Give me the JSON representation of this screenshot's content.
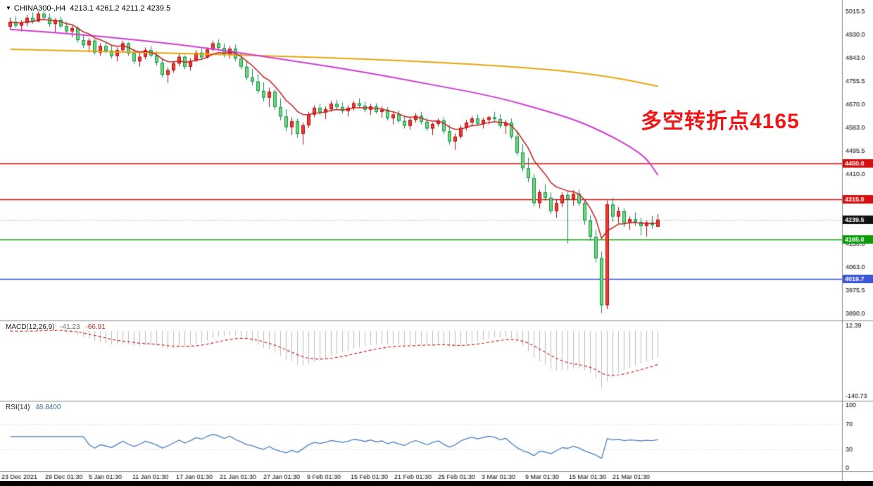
{
  "header": {
    "dropdown_icon": "▼",
    "symbol_timeframe": "CHINA300-,H4",
    "ohlc": "4213.1 4261.2 4211.2 4239.5"
  },
  "annotation": {
    "text": "多空转折点4165",
    "color": "#f21515"
  },
  "macd_pane": {
    "name": "MACD(12,26,9)",
    "main_value": "-41.23",
    "signal_value": "-66.91",
    "axis_labels": [
      {
        "text": "12.39",
        "v": 12.39
      },
      {
        "text": "-140.73",
        "v": -140.73
      }
    ]
  },
  "rsi_pane": {
    "name": "RSI(14)",
    "value": "48.8400",
    "levels": [
      70,
      30
    ],
    "axis_labels": [
      {
        "text": "100",
        "v": 100
      },
      {
        "text": "70",
        "v": 70
      },
      {
        "text": "30",
        "v": 30
      },
      {
        "text": "0",
        "v": 0
      }
    ]
  },
  "chart_data": {
    "type": "candlestick",
    "symbol": "CHINA300-",
    "timeframe": "H4",
    "current": {
      "open": 4213.1,
      "high": 4261.2,
      "low": 4211.2,
      "close": 4239.5
    },
    "price_axis": {
      "ticks": [
        "5015.5",
        "4930.0",
        "4843.0",
        "4755.5",
        "4670.0",
        "4583.0",
        "4495.5",
        "4410.0",
        "4150.0",
        "4063.0",
        "3975.5",
        "3890.0"
      ],
      "y_top_price": 5036.5,
      "y_bottom_price": 3864
    },
    "hlines": [
      {
        "price": 4450.0,
        "label": "4450.0",
        "color": "#d40f0f"
      },
      {
        "price": 4315.0,
        "label": "4315.0",
        "color": "#d40f0f"
      },
      {
        "price": 4165.0,
        "label": "4165.0",
        "color": "#0b9b0b"
      },
      {
        "price": 4019.7,
        "label": "4019.7",
        "color": "#3a56d4"
      }
    ],
    "current_price": {
      "value": 4239.5,
      "label": "4239.5",
      "badge_color": "#111111",
      "line_color": "#aaaaaa"
    },
    "time_labels": [
      "23 Dec 2021",
      "29 Dec 01:30",
      "5 Jan 01:30",
      "11 Jan 01:30",
      "17 Jan 01:30",
      "21 Jan 01:30",
      "27 Jan 01:30",
      "9 Feb 01:30",
      "15 Feb 01:30",
      "21 Feb 01:30",
      "25 Feb 01:30",
      "3 Mar 01:30",
      "9 Mar 01:30",
      "15 Mar 01:30",
      "21 Mar 01:30"
    ],
    "periods": {
      "macd": [
        12,
        26,
        9
      ],
      "rsi": 14
    },
    "colors": {
      "up_fill": "#f03b2e",
      "up_stroke": "#b01010",
      "down_fill": "#74d874",
      "down_stroke": "#0e8f56",
      "macd_hist": "#bdbdbd",
      "macd_signal": "#c62828",
      "rsi_line": "#4a7ebb"
    },
    "overlays": [
      {
        "name": "ma-orange-slow",
        "color": "#e7a615",
        "width": 2,
        "points": [
          [
            0,
            4874
          ],
          [
            15,
            4867
          ],
          [
            30,
            4859
          ],
          [
            45,
            4850
          ],
          [
            60,
            4840
          ],
          [
            75,
            4827
          ],
          [
            90,
            4808
          ],
          [
            100,
            4790
          ],
          [
            108,
            4766
          ],
          [
            115,
            4736
          ]
        ]
      },
      {
        "name": "ma-magenta-mid",
        "color": "#cf3fcf",
        "width": 2,
        "points": [
          [
            0,
            4948
          ],
          [
            12,
            4930
          ],
          [
            24,
            4906
          ],
          [
            36,
            4876
          ],
          [
            48,
            4838
          ],
          [
            61,
            4796
          ],
          [
            73,
            4750
          ],
          [
            86,
            4698
          ],
          [
            95,
            4646
          ],
          [
            101,
            4606
          ],
          [
            106,
            4558
          ],
          [
            110,
            4512
          ],
          [
            113,
            4468
          ],
          [
            115,
            4405
          ]
        ]
      },
      {
        "name": "ma-red-fast",
        "color": "#c32222",
        "width": 1.5,
        "type": "ema",
        "period": 8
      }
    ],
    "candles": [
      [
        4958,
        4992,
        4946,
        4976
      ],
      [
        4976,
        4996,
        4954,
        4962
      ],
      [
        4962,
        4982,
        4940,
        4972
      ],
      [
        4972,
        5002,
        4960,
        4991
      ],
      [
        4991,
        5011,
        4969,
        4978
      ],
      [
        4978,
        5015,
        4974,
        5006
      ],
      [
        5006,
        5014,
        4984,
        4992
      ],
      [
        4992,
        5008,
        4958,
        4968
      ],
      [
        4968,
        4990,
        4938,
        4984
      ],
      [
        4984,
        4996,
        4952,
        4960
      ],
      [
        4960,
        4976,
        4930,
        4941
      ],
      [
        4941,
        4962,
        4919,
        4953
      ],
      [
        4953,
        4959,
        4899,
        4908
      ],
      [
        4908,
        4931,
        4879,
        4889
      ],
      [
        4889,
        4916,
        4864,
        4906
      ],
      [
        4906,
        4911,
        4854,
        4862
      ],
      [
        4862,
        4896,
        4849,
        4886
      ],
      [
        4886,
        4901,
        4859,
        4869
      ],
      [
        4869,
        4890,
        4839,
        4849
      ],
      [
        4849,
        4881,
        4829,
        4871
      ],
      [
        4871,
        4906,
        4861,
        4896
      ],
      [
        4896,
        4901,
        4849,
        4859
      ],
      [
        4859,
        4876,
        4819,
        4829
      ],
      [
        4829,
        4861,
        4809,
        4846
      ],
      [
        4846,
        4881,
        4836,
        4871
      ],
      [
        4871,
        4886,
        4844,
        4851
      ],
      [
        4851,
        4866,
        4814,
        4824
      ],
      [
        4824,
        4841,
        4769,
        4779
      ],
      [
        4779,
        4806,
        4749,
        4796
      ],
      [
        4796,
        4831,
        4786,
        4821
      ],
      [
        4821,
        4856,
        4811,
        4846
      ],
      [
        4846,
        4851,
        4799,
        4809
      ],
      [
        4809,
        4841,
        4794,
        4831
      ],
      [
        4831,
        4871,
        4826,
        4861
      ],
      [
        4861,
        4876,
        4834,
        4844
      ],
      [
        4844,
        4881,
        4839,
        4873
      ],
      [
        4873,
        4906,
        4866,
        4896
      ],
      [
        4896,
        4911,
        4869,
        4879
      ],
      [
        4879,
        4896,
        4844,
        4854
      ],
      [
        4854,
        4886,
        4839,
        4876
      ],
      [
        4876,
        4891,
        4829,
        4839
      ],
      [
        4839,
        4861,
        4799,
        4809
      ],
      [
        4809,
        4831,
        4759,
        4769
      ],
      [
        4769,
        4801,
        4739,
        4754
      ],
      [
        4754,
        4781,
        4709,
        4719
      ],
      [
        4719,
        4751,
        4679,
        4694
      ],
      [
        4694,
        4731,
        4659,
        4716
      ],
      [
        4716,
        4726,
        4649,
        4659
      ],
      [
        4659,
        4691,
        4609,
        4624
      ],
      [
        4624,
        4651,
        4569,
        4584
      ],
      [
        4584,
        4621,
        4554,
        4606
      ],
      [
        4606,
        4616,
        4544,
        4559
      ],
      [
        4559,
        4601,
        4519,
        4591
      ],
      [
        4591,
        4641,
        4581,
        4631
      ],
      [
        4631,
        4666,
        4621,
        4656
      ],
      [
        4656,
        4671,
        4629,
        4639
      ],
      [
        4639,
        4661,
        4614,
        4651
      ],
      [
        4651,
        4681,
        4641,
        4671
      ],
      [
        4671,
        4686,
        4649,
        4659
      ],
      [
        4659,
        4676,
        4634,
        4644
      ],
      [
        4644,
        4666,
        4624,
        4656
      ],
      [
        4656,
        4681,
        4646,
        4673
      ],
      [
        4673,
        4691,
        4654,
        4664
      ],
      [
        4664,
        4679,
        4639,
        4649
      ],
      [
        4649,
        4671,
        4629,
        4661
      ],
      [
        4661,
        4673,
        4634,
        4641
      ],
      [
        4641,
        4661,
        4619,
        4649
      ],
      [
        4649,
        4659,
        4609,
        4617
      ],
      [
        4617,
        4641,
        4594,
        4631
      ],
      [
        4631,
        4646,
        4599,
        4607
      ],
      [
        4607,
        4626,
        4579,
        4589
      ],
      [
        4589,
        4621,
        4574,
        4611
      ],
      [
        4611,
        4636,
        4601,
        4626
      ],
      [
        4626,
        4641,
        4594,
        4604
      ],
      [
        4604,
        4619,
        4569,
        4579
      ],
      [
        4579,
        4601,
        4554,
        4596
      ],
      [
        4596,
        4616,
        4586,
        4609
      ],
      [
        4609,
        4621,
        4559,
        4569
      ],
      [
        4569,
        4591,
        4519,
        4531
      ],
      [
        4531,
        4561,
        4499,
        4549
      ],
      [
        4549,
        4591,
        4541,
        4581
      ],
      [
        4581,
        4611,
        4571,
        4601
      ],
      [
        4601,
        4626,
        4586,
        4616
      ],
      [
        4616,
        4631,
        4589,
        4597
      ],
      [
        4597,
        4619,
        4579,
        4611
      ],
      [
        4611,
        4626,
        4594,
        4621
      ],
      [
        4621,
        4641,
        4601,
        4614
      ],
      [
        4614,
        4631,
        4579,
        4589
      ],
      [
        4589,
        4611,
        4559,
        4601
      ],
      [
        4601,
        4616,
        4539,
        4549
      ],
      [
        4549,
        4571,
        4479,
        4489
      ],
      [
        4489,
        4521,
        4419,
        4431
      ],
      [
        4431,
        4471,
        4379,
        4394
      ],
      [
        4394,
        4409,
        4289,
        4301
      ],
      [
        4301,
        4351,
        4281,
        4341
      ],
      [
        4341,
        4371,
        4311,
        4321
      ],
      [
        4321,
        4341,
        4261,
        4271
      ],
      [
        4271,
        4316,
        4246,
        4301
      ],
      [
        4301,
        4341,
        4286,
        4331
      ],
      [
        4331,
        4341,
        4151,
        4316
      ],
      [
        4316,
        4349,
        4291,
        4336
      ],
      [
        4336,
        4351,
        4291,
        4301
      ],
      [
        4301,
        4316,
        4221,
        4236
      ],
      [
        4236,
        4256,
        4161,
        4176
      ],
      [
        4176,
        4201,
        4081,
        4096
      ],
      [
        4096,
        4121,
        3891,
        3921
      ],
      [
        3921,
        4311,
        3906,
        4296
      ],
      [
        4296,
        4321,
        4231,
        4251
      ],
      [
        4251,
        4286,
        4226,
        4271
      ],
      [
        4271,
        4281,
        4211,
        4226
      ],
      [
        4226,
        4251,
        4201,
        4241
      ],
      [
        4241,
        4266,
        4216,
        4231
      ],
      [
        4231,
        4246,
        4181,
        4216
      ],
      [
        4216,
        4236,
        4176,
        4229
      ],
      [
        4229,
        4253,
        4206,
        4219
      ],
      [
        4213.1,
        4261.2,
        4211.2,
        4239.5
      ]
    ]
  }
}
